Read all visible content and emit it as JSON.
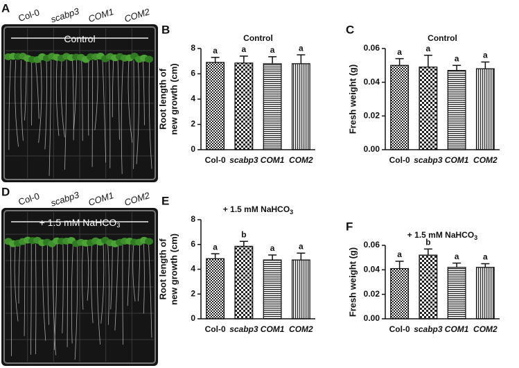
{
  "photos": [
    {
      "panel": "A",
      "labels": [
        "Col-0",
        "scabp3",
        "COM1",
        "COM2"
      ],
      "label_italic": [
        false,
        true,
        true,
        true
      ],
      "caption": "Control",
      "caption_subscript": null
    },
    {
      "panel": "D",
      "labels": [
        "Col-0",
        "scabp3",
        "COM1",
        "COM2"
      ],
      "label_italic": [
        false,
        true,
        true,
        true
      ],
      "caption": "+ 1.5 mM NaHCO",
      "caption_subscript": "3"
    }
  ],
  "chart_data": [
    {
      "type": "bar",
      "panel": "B",
      "title": "Control",
      "title_subscript": null,
      "ylabel_lines": [
        "Root length of",
        "new growth (cm)"
      ],
      "categories": [
        "Col-0",
        "scabp3",
        "COM1",
        "COM2"
      ],
      "category_italic": [
        false,
        true,
        true,
        true
      ],
      "values": [
        6.9,
        6.85,
        6.8,
        6.8
      ],
      "errors": [
        0.4,
        0.55,
        0.55,
        0.7
      ],
      "significance": [
        "a",
        "a",
        "a",
        "a"
      ],
      "patterns": [
        "checker-fine",
        "checker",
        "horizontal",
        "vertical"
      ],
      "ylim": [
        0,
        8
      ],
      "yticks": [
        0,
        2,
        4,
        6,
        8
      ]
    },
    {
      "type": "bar",
      "panel": "C",
      "title": "Control",
      "title_subscript": null,
      "ylabel_lines": [
        "Fresh weight (g)"
      ],
      "categories": [
        "Col-0",
        "scabp3",
        "COM1",
        "COM2"
      ],
      "category_italic": [
        false,
        true,
        true,
        true
      ],
      "values": [
        0.05,
        0.049,
        0.047,
        0.048
      ],
      "errors": [
        0.004,
        0.007,
        0.003,
        0.004
      ],
      "significance": [
        "a",
        "a",
        "a",
        "a"
      ],
      "patterns": [
        "checker-fine",
        "checker",
        "horizontal",
        "vertical"
      ],
      "ylim": [
        0,
        0.06
      ],
      "yticks": [
        {
          "value": 0,
          "label": "0.00"
        },
        {
          "value": 0.02,
          "label": "0.02"
        },
        {
          "value": 0.04,
          "label": "0.04"
        },
        {
          "value": 0.06,
          "label": "0.06"
        }
      ]
    },
    {
      "type": "bar",
      "panel": "E",
      "title": "+ 1.5 mM NaHCO",
      "title_subscript": "3",
      "ylabel_lines": [
        "Root length of",
        "new growth (cm)"
      ],
      "categories": [
        "Col-0",
        "scabp3",
        "COM1",
        "COM2"
      ],
      "category_italic": [
        false,
        true,
        true,
        true
      ],
      "values": [
        4.85,
        5.85,
        4.75,
        4.75
      ],
      "errors": [
        0.4,
        0.4,
        0.4,
        0.55
      ],
      "significance": [
        "a",
        "b",
        "a",
        "a"
      ],
      "patterns": [
        "checker-fine",
        "checker",
        "horizontal",
        "vertical"
      ],
      "ylim": [
        0,
        8
      ],
      "yticks": [
        0,
        2,
        4,
        6,
        8
      ]
    },
    {
      "type": "bar",
      "panel": "F",
      "title": "+ 1.5 mM NaHCO",
      "title_subscript": "3",
      "ylabel_lines": [
        "Fresh weight (g)"
      ],
      "categories": [
        "Col-0",
        "scabp3",
        "COM1",
        "COM2"
      ],
      "category_italic": [
        false,
        true,
        true,
        true
      ],
      "values": [
        0.041,
        0.052,
        0.042,
        0.042
      ],
      "errors": [
        0.006,
        0.005,
        0.0035,
        0.003
      ],
      "significance": [
        "a",
        "b",
        "a",
        "a"
      ],
      "patterns": [
        "checker-fine",
        "checker",
        "horizontal",
        "vertical"
      ],
      "ylim": [
        0,
        0.06
      ],
      "yticks": [
        {
          "value": 0,
          "label": "0.00"
        },
        {
          "value": 0.02,
          "label": "0.02"
        },
        {
          "value": 0.04,
          "label": "0.04"
        },
        {
          "value": 0.06,
          "label": "0.06"
        }
      ]
    }
  ]
}
